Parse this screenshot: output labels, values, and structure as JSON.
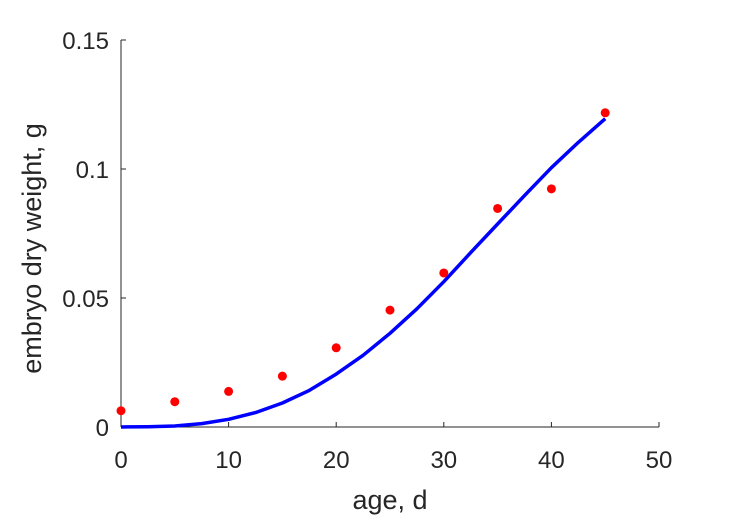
{
  "chart_data": {
    "type": "scatter",
    "xlabel": "age, d",
    "ylabel": "embryo dry weight, g",
    "xlim": [
      0,
      50
    ],
    "ylim": [
      0,
      0.15
    ],
    "xticks": [
      "0",
      "10",
      "20",
      "30",
      "40",
      "50"
    ],
    "yticks": [
      "0",
      "0.05",
      "0.1",
      "0.15"
    ],
    "grid": false,
    "box": false,
    "series": [
      {
        "kind": "points",
        "color": "#ff0000",
        "x": [
          0,
          5,
          10,
          15,
          20,
          25,
          30,
          35,
          40,
          45
        ],
        "y": [
          0.0063,
          0.0098,
          0.0138,
          0.0197,
          0.0307,
          0.0453,
          0.0597,
          0.0847,
          0.0923,
          0.1218
        ]
      },
      {
        "kind": "line",
        "color": "#0000ff",
        "x": [
          0,
          2.5,
          5,
          7.5,
          10,
          12.5,
          15,
          17.5,
          20,
          22.5,
          25,
          27.5,
          30,
          32.5,
          35,
          37.5,
          40,
          42.5,
          45
        ],
        "y": [
          0,
          0.0001,
          0.0004,
          0.0013,
          0.003,
          0.0056,
          0.0093,
          0.0142,
          0.0205,
          0.0278,
          0.0363,
          0.0458,
          0.0563,
          0.0676,
          0.0787,
          0.0897,
          0.1005,
          0.1103,
          0.1195
        ]
      }
    ]
  }
}
